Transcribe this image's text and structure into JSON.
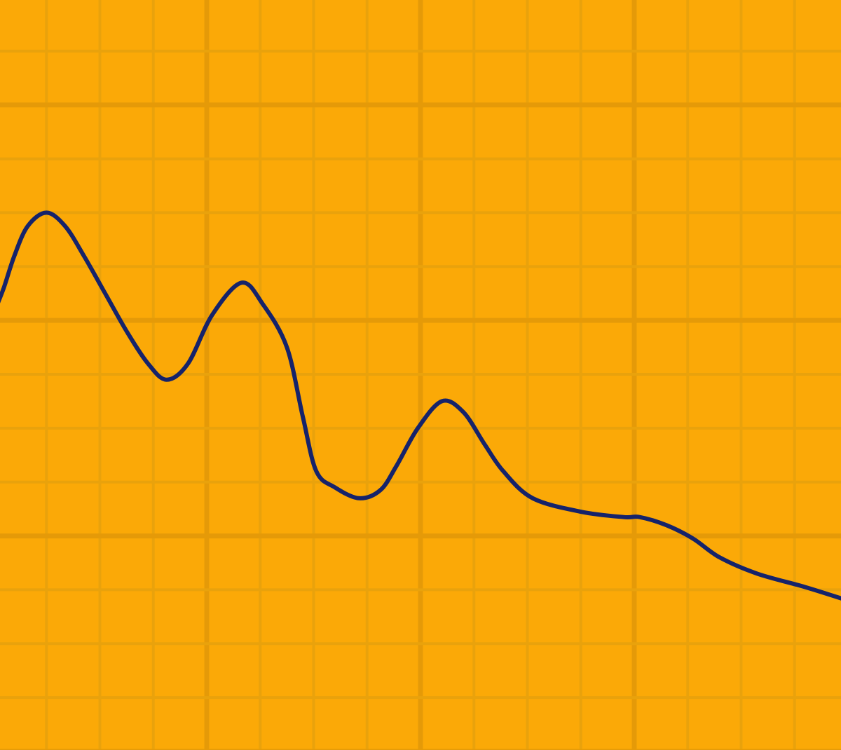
{
  "colors": {
    "background": "#FBA907",
    "grid_minor": "#E9A20C",
    "grid_major": "#E59A08",
    "line": "#16236A"
  },
  "chart_data": {
    "type": "line",
    "title": "",
    "xlabel": "",
    "ylabel": "",
    "xlim": [
      0,
      16
    ],
    "ylim": [
      0,
      14
    ],
    "grid": true,
    "minor_step": 1,
    "major_step": 4,
    "legend": "none",
    "series": [
      {
        "color": "#16236A",
        "points": [
          [
            0.0,
            8.1
          ],
          [
            0.2,
            8.6
          ],
          [
            0.4,
            9.2
          ],
          [
            0.65,
            9.75
          ],
          [
            1.0,
            10.0
          ],
          [
            1.35,
            9.75
          ],
          [
            1.7,
            9.2
          ],
          [
            2.1,
            8.5
          ],
          [
            2.5,
            7.8
          ],
          [
            2.9,
            7.2
          ],
          [
            3.25,
            6.9
          ],
          [
            3.65,
            7.2
          ],
          [
            4.1,
            8.1
          ],
          [
            4.65,
            8.7
          ],
          [
            5.05,
            8.3
          ],
          [
            5.5,
            7.5
          ],
          [
            5.8,
            6.2
          ],
          [
            6.05,
            5.2
          ],
          [
            6.4,
            4.9
          ],
          [
            6.85,
            4.7
          ],
          [
            7.25,
            4.85
          ],
          [
            7.55,
            5.3
          ],
          [
            7.95,
            6.0
          ],
          [
            8.4,
            6.5
          ],
          [
            8.8,
            6.3
          ],
          [
            9.2,
            5.7
          ],
          [
            9.55,
            5.2
          ],
          [
            10.1,
            4.7
          ],
          [
            11.0,
            4.45
          ],
          [
            11.8,
            4.35
          ],
          [
            12.1,
            4.35
          ],
          [
            12.6,
            4.2
          ],
          [
            13.1,
            3.95
          ],
          [
            13.6,
            3.6
          ],
          [
            14.3,
            3.3
          ],
          [
            15.2,
            3.05
          ],
          [
            16.0,
            2.8
          ]
        ]
      }
    ]
  }
}
